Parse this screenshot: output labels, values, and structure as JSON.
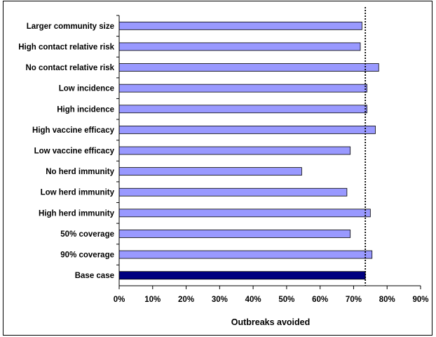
{
  "chart_data": {
    "type": "bar",
    "orientation": "horizontal",
    "title": "",
    "xlabel": "Outbreaks avoided",
    "ylabel": "",
    "xlim": [
      0,
      90
    ],
    "x_ticks": [
      "0%",
      "10%",
      "20%",
      "30%",
      "40%",
      "50%",
      "60%",
      "70%",
      "80%",
      "90%"
    ],
    "grid": false,
    "legend": "none",
    "reference_line": {
      "value": 73.5,
      "style": "dotted",
      "color": "#000000"
    },
    "categories": [
      "Larger community size",
      "High contact relative risk",
      "No contact relative risk",
      "Low incidence",
      "High incidence",
      "High vaccine efficacy",
      "Low vaccine efficacy",
      "No herd immunity",
      "Low herd immunity",
      "High herd immunity",
      "50% coverage",
      "90% coverage",
      "Base case"
    ],
    "values": [
      72.5,
      72.0,
      77.5,
      74.0,
      74.0,
      76.5,
      69.0,
      54.5,
      68.0,
      75.0,
      69.0,
      75.5,
      73.5
    ],
    "bar_colors": {
      "default": "#9999ff",
      "highlight": "#000080",
      "highlight_category": "Base case"
    }
  }
}
